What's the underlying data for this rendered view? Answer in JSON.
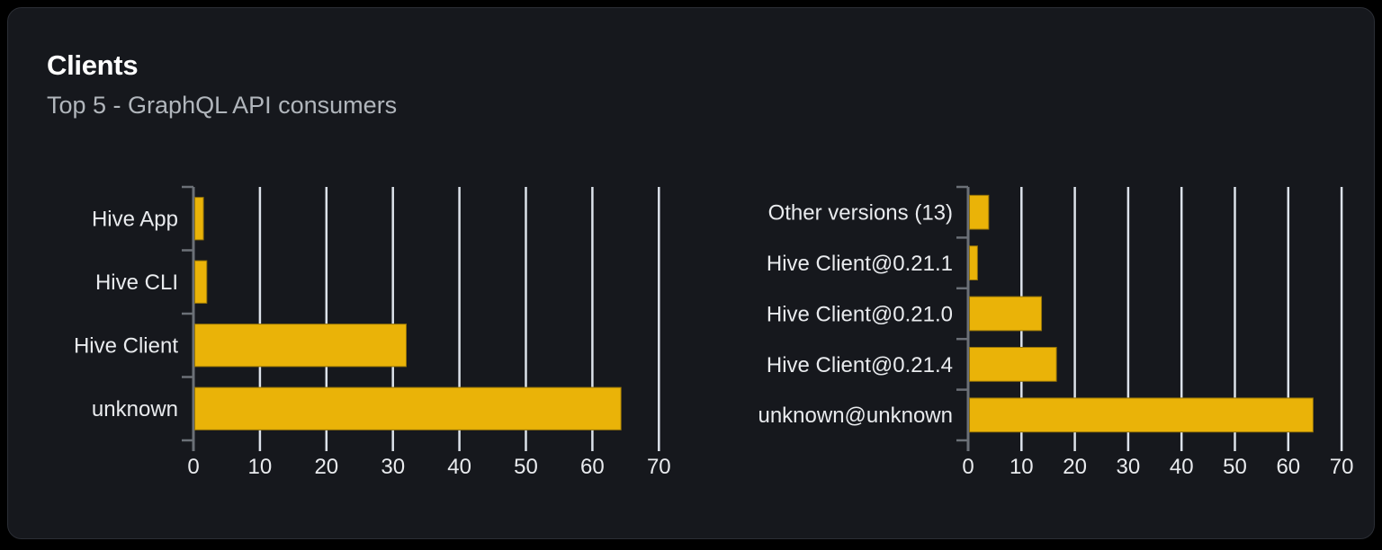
{
  "card": {
    "title": "Clients",
    "subtitle": "Top 5 - GraphQL API consumers"
  },
  "colors": {
    "page_bg": "#000000",
    "card_bg": "#16181d",
    "card_border": "#2b2e35",
    "title": "#ffffff",
    "subtitle": "#b1b6bc",
    "text": "#e9ebee",
    "bar": "#eab308",
    "bar_border": "#937208",
    "grid": "#dce2ea",
    "axis": "#6b7077"
  },
  "chart_data": [
    {
      "type": "bar",
      "orientation": "horizontal",
      "title": "Clients by name",
      "categories": [
        "Hive App",
        "Hive CLI",
        "Hive Client",
        "unknown"
      ],
      "values": [
        1.3,
        1.8,
        31.8,
        64.1
      ],
      "x_ticks": [
        0,
        10,
        20,
        30,
        40,
        50,
        60,
        70
      ],
      "xlim": [
        0,
        70
      ],
      "xlabel": "",
      "ylabel": "",
      "grid": true,
      "legend": false
    },
    {
      "type": "bar",
      "orientation": "horizontal",
      "title": "Clients by version",
      "categories": [
        "Other versions (13)",
        "Hive Client@0.21.1",
        "Hive Client@0.21.0",
        "Hive Client@0.21.4",
        "unknown@unknown"
      ],
      "values": [
        3.6,
        1.5,
        13.5,
        16.3,
        64.4
      ],
      "x_ticks": [
        0,
        10,
        20,
        30,
        40,
        50,
        60,
        70
      ],
      "xlim": [
        0,
        70
      ],
      "xlabel": "",
      "ylabel": "",
      "grid": true,
      "legend": false
    }
  ]
}
